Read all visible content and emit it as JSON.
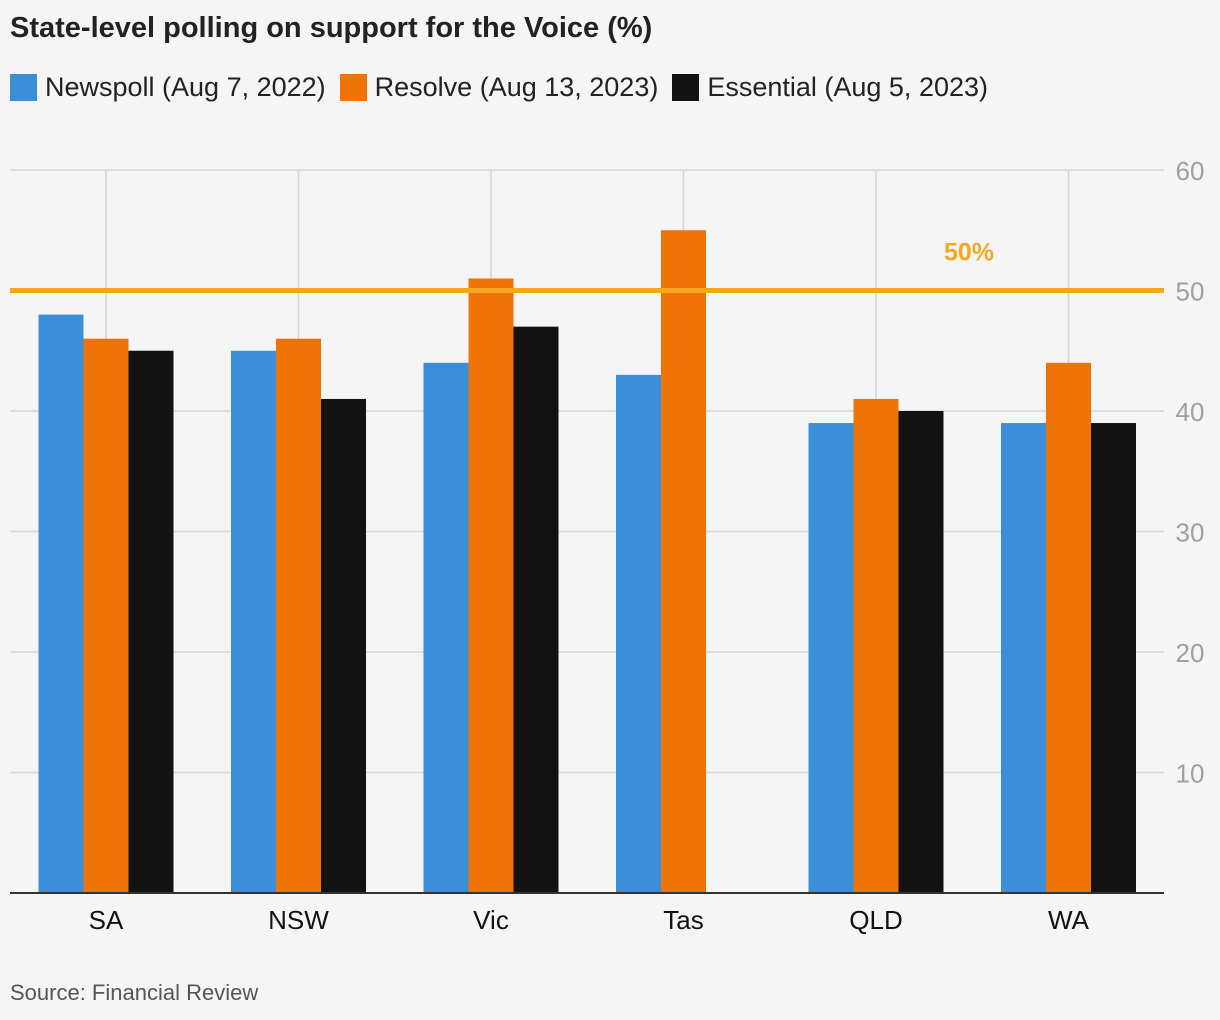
{
  "title": "State-level polling on support for the Voice (%)",
  "source": "Source: Financial Review",
  "colors": {
    "newspoll": "#3b8fd9",
    "resolve": "#f07308",
    "essential": "#121212",
    "threshold": "#f6a623",
    "grid": "#d6d6d6",
    "axis_text": "#a0a0a0"
  },
  "legend": [
    {
      "label": "Newspoll (Aug 7, 2022)",
      "color": "#3b8fd9"
    },
    {
      "label": "Resolve (Aug 13, 2023)",
      "color": "#f07308"
    },
    {
      "label": "Essential (Aug 5, 2023)",
      "color": "#121212"
    }
  ],
  "chart_data": {
    "type": "bar",
    "title": "State-level polling on support for the Voice (%)",
    "categories": [
      "SA",
      "NSW",
      "Vic",
      "Tas",
      "QLD",
      "WA"
    ],
    "series": [
      {
        "name": "Newspoll (Aug 7, 2022)",
        "color": "#3b8fd9",
        "values": [
          48,
          45,
          44,
          43,
          39,
          39
        ]
      },
      {
        "name": "Resolve (Aug 13, 2023)",
        "color": "#f07308",
        "values": [
          46,
          46,
          51,
          55,
          41,
          44
        ]
      },
      {
        "name": "Essential (Aug 5, 2023)",
        "color": "#121212",
        "values": [
          45,
          41,
          47,
          null,
          40,
          39
        ]
      }
    ],
    "ylim": [
      0,
      60
    ],
    "yticks": [
      10,
      20,
      30,
      40,
      50,
      60
    ],
    "y_axis_side": "right",
    "grid": true,
    "reference_line": {
      "value": 50,
      "label": "50%"
    },
    "legend_position": "top-left"
  }
}
